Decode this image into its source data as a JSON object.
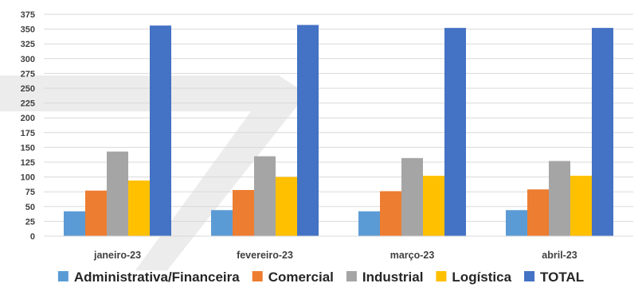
{
  "chart_data": {
    "type": "bar",
    "categories": [
      "janeiro-23",
      "fevereiro-23",
      "março-23",
      "abril-23"
    ],
    "series": [
      {
        "name": "Administrativa/Financeira",
        "color": "#5B9BD5",
        "values": [
          42,
          44,
          42,
          44
        ]
      },
      {
        "name": "Comercial",
        "color": "#ED7D31",
        "values": [
          77,
          78,
          76,
          79
        ]
      },
      {
        "name": "Industrial",
        "color": "#A5A5A5",
        "values": [
          143,
          135,
          132,
          127
        ]
      },
      {
        "name": "Logística",
        "color": "#FFC000",
        "values": [
          94,
          100,
          102,
          102
        ]
      },
      {
        "name": "TOTAL",
        "color": "#4472C4",
        "values": [
          356,
          357,
          352,
          352
        ]
      }
    ],
    "yticks": [
      0,
      25,
      50,
      75,
      100,
      125,
      150,
      175,
      200,
      225,
      250,
      275,
      300,
      325,
      350,
      375
    ],
    "ylim": [
      0,
      375
    ],
    "grid": true,
    "legend_position": "bottom",
    "title": "",
    "xlabel": "",
    "ylabel": ""
  }
}
